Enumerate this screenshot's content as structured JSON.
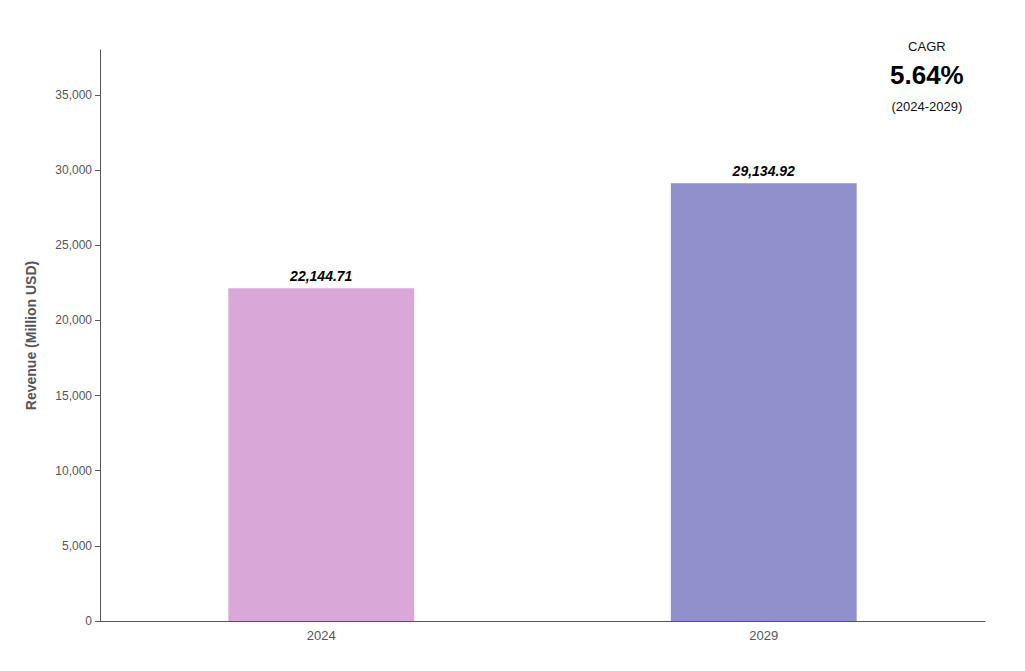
{
  "chart_data": {
    "type": "bar",
    "categories": [
      "2024",
      "2029"
    ],
    "values": [
      22144.71,
      29134.92
    ],
    "value_labels": [
      "22,144.71",
      "29,134.92"
    ],
    "data_labels": true,
    "colors": [
      "#d9a8d9",
      "#9090cc"
    ],
    "ylabel": "Revenue (Million USD)",
    "ylim": [
      0,
      38000
    ],
    "yticks": [
      0,
      {
        "value": 5000,
        "label": "5,000"
      },
      {
        "value": 10000,
        "label": "10,000"
      },
      {
        "value": 15000,
        "label": "15,000"
      },
      {
        "value": 20000,
        "label": "20,000"
      },
      {
        "value": 25000,
        "label": "25,000"
      },
      {
        "value": 30000,
        "label": "30,000"
      },
      {
        "value": 35000,
        "label": "35,000"
      }
    ],
    "grid": false,
    "annotations": [
      "CAGR",
      "5.64%",
      "(2024-2029)"
    ]
  }
}
